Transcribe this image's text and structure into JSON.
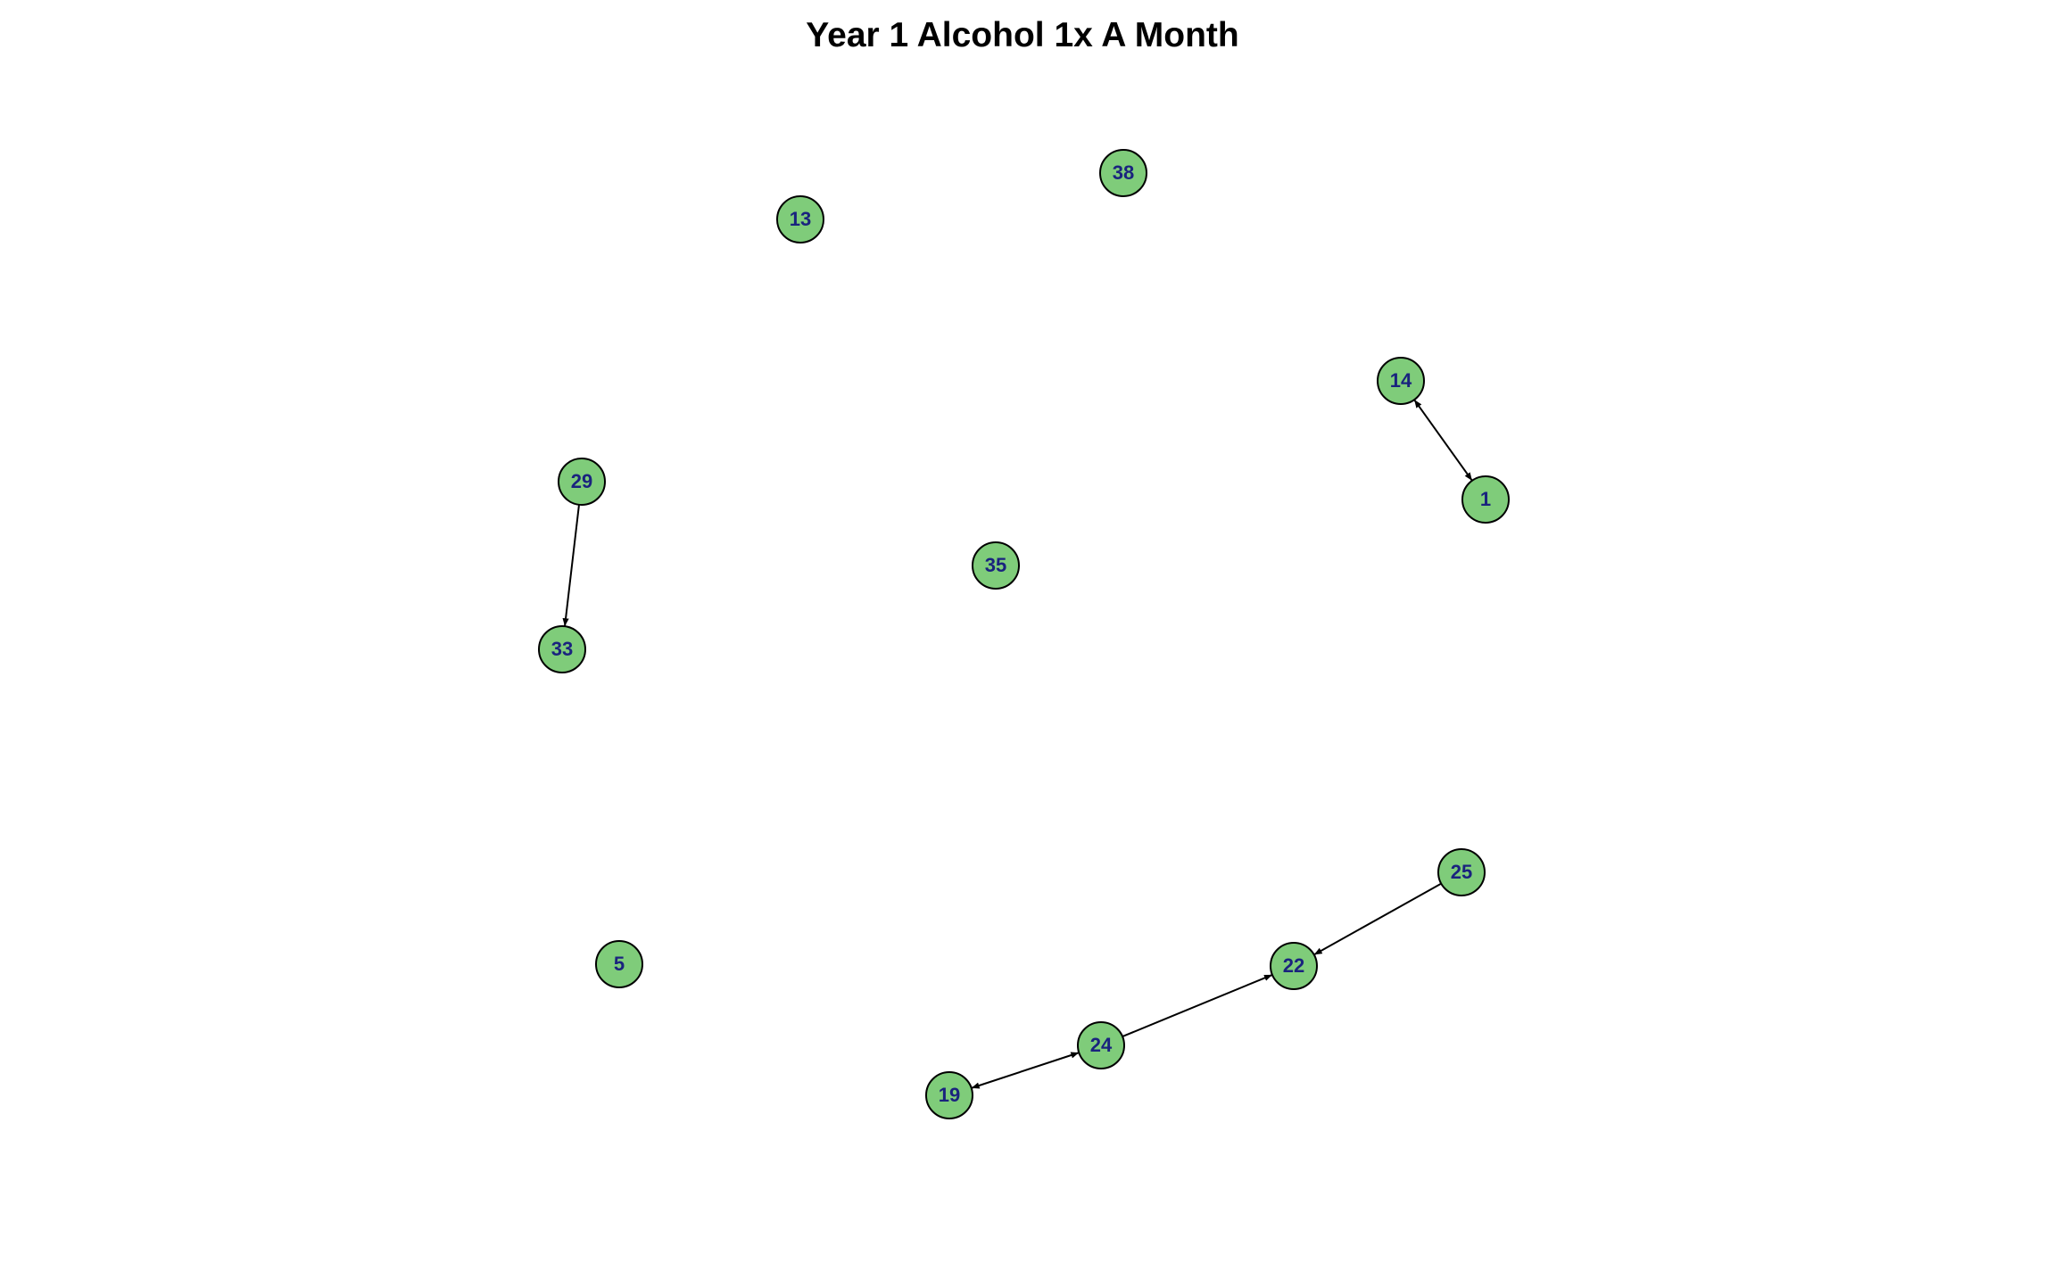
{
  "title": "Year 1 Alcohol 1x A Month",
  "colors": {
    "node_fill": "#7FCC7A",
    "node_stroke": "#000000",
    "label": "#1A237E",
    "edge": "#000000"
  },
  "nodes": [
    {
      "id": "38",
      "label": "38"
    },
    {
      "id": "13",
      "label": "13"
    },
    {
      "id": "14",
      "label": "14"
    },
    {
      "id": "1",
      "label": "1"
    },
    {
      "id": "29",
      "label": "29"
    },
    {
      "id": "35",
      "label": "35"
    },
    {
      "id": "33",
      "label": "33"
    },
    {
      "id": "25",
      "label": "25"
    },
    {
      "id": "22",
      "label": "22"
    },
    {
      "id": "5",
      "label": "5"
    },
    {
      "id": "24",
      "label": "24"
    },
    {
      "id": "19",
      "label": "19"
    }
  ],
  "edges": [
    {
      "from": "14",
      "to": "1",
      "bidirectional": true
    },
    {
      "from": "29",
      "to": "33",
      "bidirectional": false
    },
    {
      "from": "25",
      "to": "22",
      "bidirectional": false
    },
    {
      "from": "24",
      "to": "22",
      "bidirectional": false
    },
    {
      "from": "19",
      "to": "24",
      "bidirectional": true
    }
  ]
}
